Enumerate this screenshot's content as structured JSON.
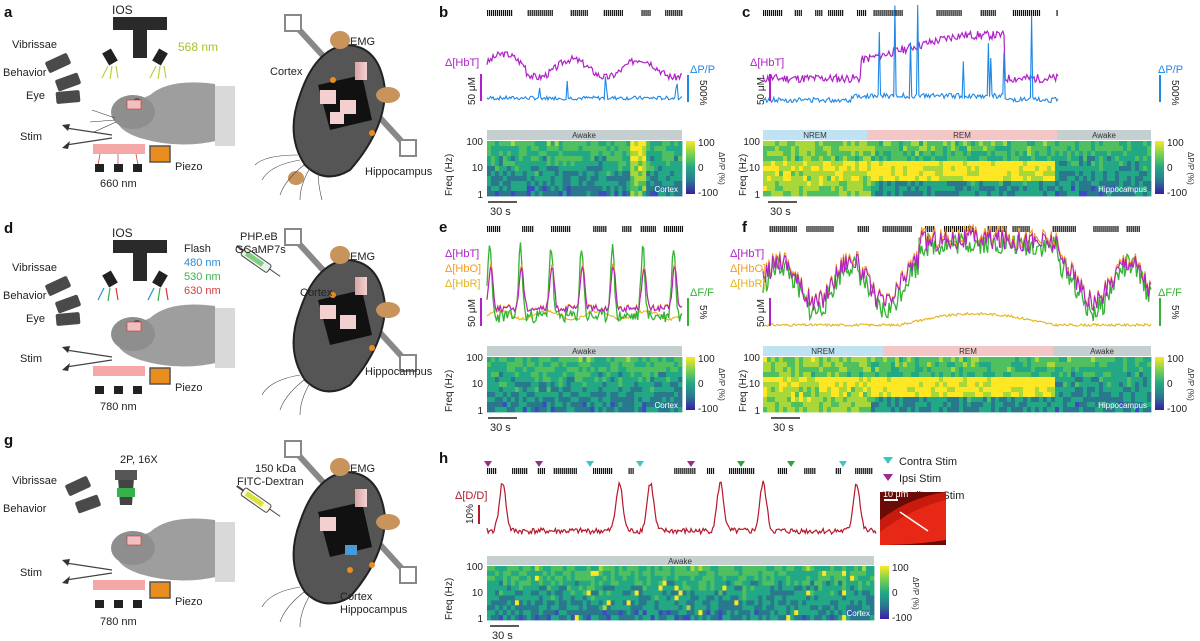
{
  "panels": {
    "a": "a",
    "b": "b",
    "c": "c",
    "d": "d",
    "e": "e",
    "f": "f",
    "g": "g",
    "h": "h"
  },
  "setup_a": {
    "ios": "IOS",
    "wavelength": "568 nm",
    "vibrissae": "Vibrissae",
    "behavior": "Behavior",
    "eye": "Eye",
    "stim": "Stim",
    "piezo": "Piezo",
    "light": "660 nm"
  },
  "mouse_a": {
    "emg": "EMG",
    "cortex": "Cortex",
    "hippocampus": "Hippocampus"
  },
  "setup_d": {
    "ios": "IOS",
    "flash": "Flash",
    "w480": "480 nm",
    "w530": "530 nm",
    "w630": "630 nm",
    "vibrissae": "Vibrissae",
    "behavior": "Behavior",
    "eye": "Eye",
    "stim": "Stim",
    "piezo": "Piezo",
    "light": "780 nm"
  },
  "mouse_d": {
    "virus1": "PHP.eB",
    "virus2": "GCaMP7s",
    "emg": "EMG",
    "cortex": "Cortex",
    "hippocampus": "Hippocampus"
  },
  "setup_g": {
    "scope": "2P, 16X",
    "vibrissae": "Vibrissae",
    "behavior": "Behavior",
    "stim": "Stim",
    "piezo": "Piezo",
    "light": "780 nm"
  },
  "mouse_g": {
    "dex1": "150 kDa",
    "dex2": "FITC-Dextran",
    "emg": "EMG",
    "cortex": "Cortex",
    "hippocampus": "Hippocampus"
  },
  "common": {
    "freq_label": "Freq (Hz)",
    "ticks": [
      "100",
      "10",
      "1"
    ],
    "cbar_label": "ΔP/P (%)",
    "cbar_ticks": [
      "100",
      "0",
      "-100"
    ],
    "scalebar_time": "30 s"
  },
  "panel_b": {
    "hbt_label": "Δ[HbT]",
    "scale_hbt": "50 μM",
    "right_label": "ΔP/P",
    "scale_right": "500%",
    "state": "Awake",
    "region": "Cortex"
  },
  "panel_c": {
    "hbt_label": "Δ[HbT]",
    "scale_hbt": "50 μM",
    "right_label": "ΔP/P",
    "scale_right": "500%",
    "states": [
      "NREM",
      "REM",
      "Awake"
    ],
    "region": "Hippocampus"
  },
  "panel_e": {
    "hbt_label": "Δ[HbT]",
    "hbo_label": "Δ[HbO]",
    "hbr_label": "Δ[HbR]",
    "scale_hbt": "50 μM",
    "right_label": "ΔF/F",
    "scale_right": "5%",
    "state": "Awake",
    "region": "Cortex"
  },
  "panel_f": {
    "hbt_label": "Δ[HbT]",
    "hbo_label": "Δ[HbO]",
    "hbr_label": "Δ[HbR]",
    "scale_hbt": "50 μM",
    "right_label": "ΔF/F",
    "scale_right": "5%",
    "states": [
      "NREM",
      "REM",
      "Awake"
    ],
    "region": "Hippocampus"
  },
  "panel_h": {
    "dd_label": "Δ[D/D]",
    "scale": "10%",
    "legend": [
      "Contra Stim",
      "Ipsi Stim",
      "Auditory Stim"
    ],
    "micro_scale": "10 μm",
    "state": "Awake",
    "region": "Cortex"
  },
  "colors": {
    "hbt": "#b020c8",
    "hbo": "#f29b1e",
    "hbr": "#e3b51a",
    "dpp": "#1f88e5",
    "gcamp": "#33b233",
    "dd": "#b5182b",
    "contra": "#3cc6c6",
    "ipsi": "#9b2a8f",
    "auditory": "#2ea33c",
    "awake_bar": "#c5cfcf",
    "nrem_bar": "#bfe3f2",
    "rem_bar": "#f2c7c6"
  }
}
